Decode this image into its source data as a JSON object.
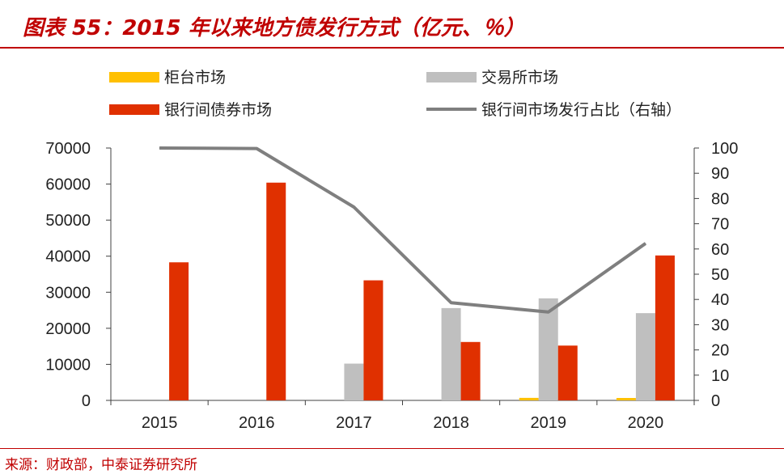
{
  "header": {
    "title": "图表 55：2015 年以来地方债发行方式（亿元、％）"
  },
  "footer": {
    "source": "来源：财政部，中泰证券研究所"
  },
  "colors": {
    "title": "#c00000",
    "counter": "#FFC000",
    "exchange": "#BFBFBF",
    "bank": "#E03000",
    "line": "#7F7F7F"
  },
  "chart_data": {
    "type": "bar",
    "categories": [
      "2015",
      "2016",
      "2017",
      "2018",
      "2019",
      "2020"
    ],
    "series": [
      {
        "name": "柜台市场",
        "kind": "bar",
        "axis": "left",
        "color": "#FFC000",
        "values": [
          0,
          0,
          0,
          0,
          700,
          600
        ]
      },
      {
        "name": "交易所市场",
        "kind": "bar",
        "axis": "left",
        "color": "#BFBFBF",
        "values": [
          0,
          0,
          10200,
          25600,
          28300,
          24200
        ]
      },
      {
        "name": "银行间债券市场",
        "kind": "bar",
        "axis": "left",
        "color": "#E03000",
        "values": [
          38300,
          60400,
          33300,
          16200,
          15200,
          40200
        ]
      },
      {
        "name": "银行间市场发行占比（右轴）",
        "kind": "line",
        "axis": "right",
        "color": "#7F7F7F",
        "values": [
          100,
          99.8,
          76.6,
          38.7,
          35.0,
          62.2
        ]
      }
    ],
    "y_left": {
      "min": 0,
      "max": 70000,
      "ticks": [
        "0",
        "10000",
        "20000",
        "30000",
        "40000",
        "50000",
        "60000",
        "70000"
      ]
    },
    "y_right": {
      "min": 0,
      "max": 100,
      "ticks": [
        "0",
        "10",
        "20",
        "30",
        "40",
        "50",
        "60",
        "70",
        "80",
        "90",
        "100"
      ]
    },
    "legend_position": "top",
    "grid": false
  }
}
